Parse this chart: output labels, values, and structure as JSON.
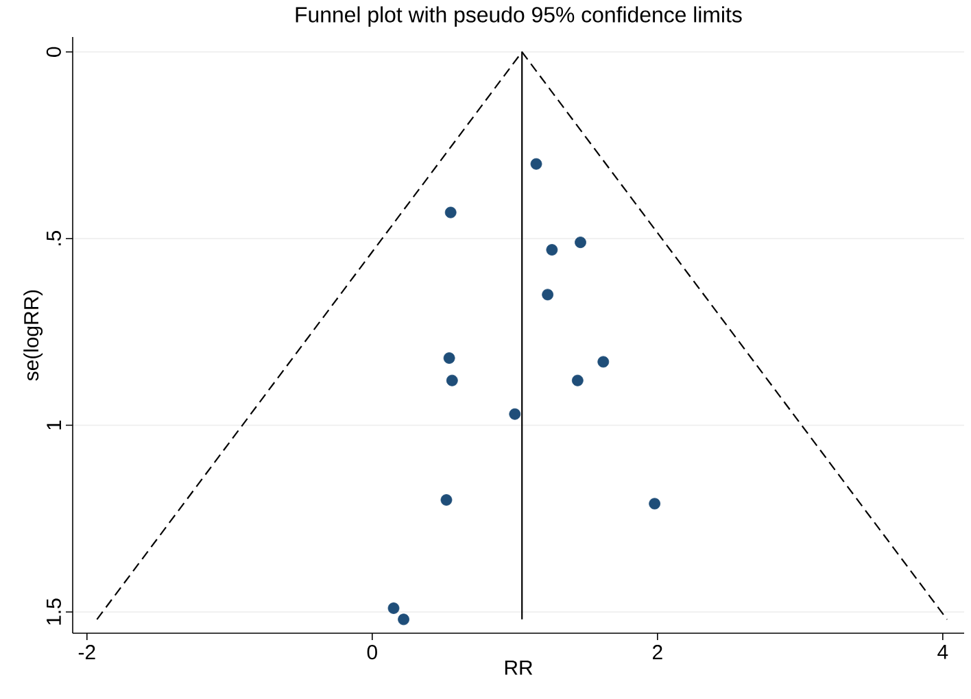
{
  "chart_data": {
    "type": "scatter",
    "title": "Funnel plot with pseudo 95% confidence limits",
    "xlabel": "RR",
    "ylabel": "se(logRR)",
    "xlim": [
      -2.1,
      4.15
    ],
    "ylim": [
      1.557,
      -0.04
    ],
    "xticks": [
      -2,
      0,
      2,
      4
    ],
    "yticks": [
      0,
      {
        "value": 0.5,
        "label": ".5"
      },
      1,
      1.5
    ],
    "grid": "y",
    "legend": false,
    "series": [
      {
        "color": "#1f4e79",
        "marker": "circle",
        "x": [
          1.15,
          0.55,
          1.26,
          1.46,
          1.23,
          0.54,
          0.56,
          1.62,
          1.44,
          1.0,
          0.52,
          1.98,
          0.15,
          0.22
        ],
        "values": [
          0.3,
          0.43,
          0.53,
          0.51,
          0.65,
          0.82,
          0.88,
          0.83,
          0.88,
          0.97,
          1.2,
          1.21,
          1.49,
          1.52
        ]
      },
      {
        "type": "line",
        "color": "#000000",
        "line_style": "dashed",
        "marker": "none",
        "x": [
          -1.93,
          1.05,
          4.03
        ],
        "values": [
          1.52,
          0,
          1.52
        ]
      },
      {
        "type": "line",
        "color": "#000000",
        "line_style": "solid",
        "marker": "none",
        "x": [
          1.05,
          1.05
        ],
        "values": [
          0,
          1.52
        ]
      }
    ]
  }
}
